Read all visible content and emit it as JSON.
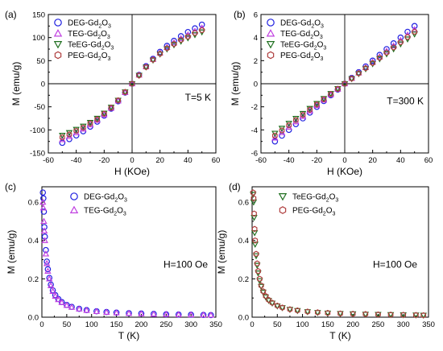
{
  "chart_data": [
    {
      "panel": "(a)",
      "type": "scatter",
      "xlabel": "H (KOe)",
      "ylabel": "M (emu/g)",
      "xlim": [
        -60,
        60
      ],
      "ylim": [
        -150,
        150
      ],
      "xticks": [
        -60,
        -40,
        -20,
        0,
        20,
        40,
        60
      ],
      "yticks": [
        -150,
        -100,
        -50,
        0,
        50,
        100,
        150
      ],
      "annotation": "T=5 K",
      "legend_position": "top-left",
      "series": [
        {
          "name": "DEG-Gd2O3",
          "marker": "circle",
          "color": "#2020e0",
          "x": [
            -50,
            -45,
            -40,
            -35,
            -30,
            -25,
            -20,
            -15,
            -10,
            -5,
            0,
            5,
            10,
            15,
            20,
            25,
            30,
            35,
            40,
            45,
            50
          ],
          "y": [
            -128,
            -120,
            -112,
            -103,
            -93,
            -82,
            -69,
            -54,
            -38,
            -19,
            0,
            19,
            38,
            54,
            69,
            82,
            93,
            103,
            112,
            120,
            128
          ]
        },
        {
          "name": "TEG-Gd2O3",
          "marker": "triangle-up",
          "color": "#c040e0",
          "x": [
            -50,
            -45,
            -40,
            -35,
            -30,
            -25,
            -20,
            -15,
            -10,
            -5,
            0,
            5,
            10,
            15,
            20,
            25,
            30,
            35,
            40,
            45,
            50
          ],
          "y": [
            -121,
            -114,
            -106,
            -98,
            -89,
            -79,
            -67,
            -53,
            -37,
            -19,
            0,
            19,
            37,
            53,
            67,
            79,
            89,
            98,
            106,
            114,
            121
          ]
        },
        {
          "name": "TeEG-Gd2O3",
          "marker": "triangle-down",
          "color": "#207020",
          "x": [
            -50,
            -45,
            -40,
            -35,
            -30,
            -25,
            -20,
            -15,
            -10,
            -5,
            0,
            5,
            10,
            15,
            20,
            25,
            30,
            35,
            40,
            45,
            50
          ],
          "y": [
            -112,
            -106,
            -99,
            -92,
            -84,
            -75,
            -64,
            -51,
            -36,
            -18,
            0,
            18,
            36,
            51,
            64,
            75,
            84,
            92,
            99,
            106,
            112
          ]
        },
        {
          "name": "PEG-Gd2O3",
          "marker": "hexagon",
          "color": "#b04040",
          "x": [
            -50,
            -45,
            -40,
            -35,
            -30,
            -25,
            -20,
            -15,
            -10,
            -5,
            0,
            5,
            10,
            15,
            20,
            25,
            30,
            35,
            40,
            45,
            50
          ],
          "y": [
            -116,
            -110,
            -102,
            -95,
            -86,
            -77,
            -65,
            -52,
            -36,
            -18,
            0,
            18,
            36,
            52,
            65,
            77,
            86,
            95,
            102,
            110,
            116
          ]
        }
      ]
    },
    {
      "panel": "(b)",
      "type": "scatter",
      "xlabel": "H (KOe)",
      "ylabel": "M (emu/g)",
      "xlim": [
        -60,
        60
      ],
      "ylim": [
        -6,
        6
      ],
      "xticks": [
        -60,
        -40,
        -20,
        0,
        20,
        40,
        60
      ],
      "yticks": [
        -6,
        -4,
        -2,
        0,
        2,
        4,
        6
      ],
      "annotation": "T=300 K",
      "legend_position": "top-left",
      "series": [
        {
          "name": "DEG-Gd2O3",
          "marker": "circle",
          "color": "#2020e0",
          "x": [
            -50,
            -45,
            -40,
            -35,
            -30,
            -25,
            -20,
            -15,
            -10,
            -5,
            0,
            5,
            10,
            15,
            20,
            25,
            30,
            35,
            40,
            45,
            50
          ],
          "y": [
            -5.0,
            -4.5,
            -4.0,
            -3.5,
            -3.0,
            -2.5,
            -2.0,
            -1.5,
            -1.0,
            -0.5,
            0,
            0.5,
            1.0,
            1.5,
            2.0,
            2.5,
            3.0,
            3.5,
            4.0,
            4.5,
            5.0
          ]
        },
        {
          "name": "TEG-Gd2O3",
          "marker": "triangle-up",
          "color": "#c040e0",
          "x": [
            -50,
            -45,
            -40,
            -35,
            -30,
            -25,
            -20,
            -15,
            -10,
            -5,
            0,
            5,
            10,
            15,
            20,
            25,
            30,
            35,
            40,
            45,
            50
          ],
          "y": [
            -4.7,
            -4.23,
            -3.76,
            -3.29,
            -2.82,
            -2.35,
            -1.88,
            -1.41,
            -0.94,
            -0.47,
            0,
            0.47,
            0.94,
            1.41,
            1.88,
            2.35,
            2.82,
            3.29,
            3.76,
            4.23,
            4.7
          ]
        },
        {
          "name": "TeEG-Gd2O3",
          "marker": "triangle-down",
          "color": "#207020",
          "x": [
            -50,
            -45,
            -40,
            -35,
            -30,
            -25,
            -20,
            -15,
            -10,
            -5,
            0,
            5,
            10,
            15,
            20,
            25,
            30,
            35,
            40,
            45,
            50
          ],
          "y": [
            -4.3,
            -3.87,
            -3.44,
            -3.01,
            -2.58,
            -2.15,
            -1.72,
            -1.29,
            -0.86,
            -0.43,
            0,
            0.43,
            0.86,
            1.29,
            1.72,
            2.15,
            2.58,
            3.01,
            3.44,
            3.87,
            4.3
          ]
        },
        {
          "name": "PEG-Gd2O3",
          "marker": "hexagon",
          "color": "#b04040",
          "x": [
            -50,
            -45,
            -40,
            -35,
            -30,
            -25,
            -20,
            -15,
            -10,
            -5,
            0,
            5,
            10,
            15,
            20,
            25,
            30,
            35,
            40,
            45,
            50
          ],
          "y": [
            -4.5,
            -4.05,
            -3.6,
            -3.15,
            -2.7,
            -2.25,
            -1.8,
            -1.35,
            -0.9,
            -0.45,
            0,
            0.45,
            0.9,
            1.35,
            1.8,
            2.25,
            2.7,
            3.15,
            3.6,
            4.05,
            4.5
          ]
        }
      ]
    },
    {
      "panel": "(c)",
      "type": "scatter",
      "xlabel": "T (K)",
      "ylabel": "M (emu/g)",
      "xlim": [
        0,
        350
      ],
      "ylim": [
        0,
        0.68
      ],
      "xticks": [
        0,
        50,
        100,
        150,
        200,
        250,
        300,
        350
      ],
      "yticks": [
        0.0,
        0.2,
        0.4,
        0.6
      ],
      "annotation": "H=100 Oe",
      "legend_position": "top-center",
      "series": [
        {
          "name": "DEG-Gd2O3",
          "marker": "circle",
          "color": "#2020e0",
          "x": [
            2,
            3,
            4,
            5,
            6,
            8,
            10,
            12,
            15,
            18,
            22,
            27,
            33,
            40,
            50,
            60,
            75,
            90,
            110,
            130,
            150,
            175,
            200,
            225,
            250,
            275,
            300,
            325,
            340
          ],
          "y": [
            0.65,
            0.62,
            0.55,
            0.47,
            0.42,
            0.35,
            0.29,
            0.25,
            0.205,
            0.17,
            0.14,
            0.115,
            0.095,
            0.079,
            0.064,
            0.054,
            0.044,
            0.037,
            0.031,
            0.027,
            0.024,
            0.021,
            0.019,
            0.017,
            0.015,
            0.014,
            0.013,
            0.012,
            0.011
          ]
        },
        {
          "name": "TEG-Gd2O3",
          "marker": "triangle-up",
          "color": "#c040e0",
          "x": [
            2,
            3,
            4,
            5,
            6,
            8,
            10,
            12,
            15,
            18,
            22,
            27,
            33,
            40,
            50,
            60,
            75,
            90,
            110,
            130,
            150,
            175,
            200,
            225,
            250,
            275,
            300,
            325,
            340
          ],
          "y": [
            0.6,
            0.57,
            0.5,
            0.45,
            0.4,
            0.33,
            0.28,
            0.24,
            0.2,
            0.165,
            0.135,
            0.11,
            0.092,
            0.077,
            0.062,
            0.052,
            0.043,
            0.036,
            0.03,
            0.026,
            0.023,
            0.02,
            0.018,
            0.016,
            0.015,
            0.014,
            0.013,
            0.012,
            0.011
          ]
        }
      ]
    },
    {
      "panel": "(d)",
      "type": "scatter",
      "xlabel": "T (K)",
      "ylabel": "M (emu/g)",
      "xlim": [
        0,
        350
      ],
      "ylim": [
        0,
        0.68
      ],
      "xticks": [
        0,
        50,
        100,
        150,
        200,
        250,
        300,
        350
      ],
      "yticks": [
        0.0,
        0.2,
        0.4,
        0.6
      ],
      "annotation": "H=100 Oe",
      "legend_position": "top-center",
      "series": [
        {
          "name": "TeEG-Gd2O3",
          "marker": "triangle-down",
          "color": "#207020",
          "x": [
            2,
            3,
            4,
            5,
            6,
            8,
            10,
            12,
            15,
            18,
            22,
            27,
            33,
            40,
            50,
            60,
            75,
            90,
            110,
            130,
            150,
            175,
            200,
            225,
            250,
            275,
            300,
            325,
            340
          ],
          "y": [
            0.64,
            0.6,
            0.52,
            0.44,
            0.38,
            0.32,
            0.27,
            0.23,
            0.19,
            0.16,
            0.13,
            0.105,
            0.087,
            0.073,
            0.058,
            0.049,
            0.04,
            0.034,
            0.028,
            0.024,
            0.021,
            0.019,
            0.017,
            0.015,
            0.014,
            0.013,
            0.012,
            0.011,
            0.01
          ]
        },
        {
          "name": "PEG-Gd2O3",
          "marker": "hexagon",
          "color": "#b04040",
          "x": [
            2,
            3,
            4,
            5,
            6,
            8,
            10,
            12,
            15,
            18,
            22,
            27,
            33,
            40,
            50,
            60,
            75,
            90,
            110,
            130,
            150,
            175,
            200,
            225,
            250,
            275,
            300,
            325,
            340
          ],
          "y": [
            0.65,
            0.62,
            0.54,
            0.46,
            0.4,
            0.33,
            0.28,
            0.24,
            0.2,
            0.165,
            0.135,
            0.11,
            0.09,
            0.075,
            0.06,
            0.05,
            0.041,
            0.035,
            0.029,
            0.025,
            0.022,
            0.019,
            0.017,
            0.016,
            0.014,
            0.013,
            0.012,
            0.011,
            0.01
          ]
        }
      ]
    }
  ]
}
